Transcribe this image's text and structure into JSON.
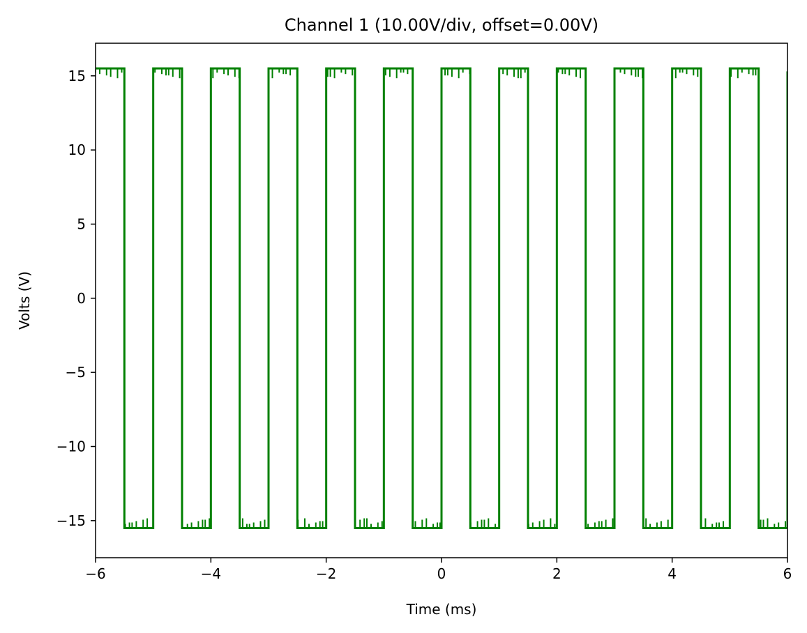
{
  "chart_data": {
    "type": "line",
    "title": "Channel 1 (10.00V/div, offset=0.00V)",
    "xlabel": "Time (ms)",
    "ylabel": "Volts (V)",
    "xlim": [
      -6,
      6
    ],
    "ylim": [
      -17.5,
      17.2
    ],
    "xticks": [
      -6,
      -4,
      -2,
      0,
      2,
      4,
      6
    ],
    "xtick_labels": [
      "−6",
      "−4",
      "−2",
      "0",
      "2",
      "4",
      "6"
    ],
    "yticks": [
      -15,
      -10,
      -5,
      0,
      5,
      10,
      15
    ],
    "ytick_labels": [
      "−15",
      "−10",
      "−5",
      "0",
      "5",
      "10",
      "15"
    ],
    "grid": false,
    "series": [
      {
        "color": "#008000",
        "x": [
          -6.0,
          -5.5,
          -5.5,
          -5.0,
          -5.0,
          -4.5,
          -4.5,
          -4.0,
          -4.0,
          -3.5,
          -3.5,
          -3.0,
          -3.0,
          -2.5,
          -2.5,
          -2.0,
          -2.0,
          -1.5,
          -1.5,
          -1.0,
          -1.0,
          -0.5,
          -0.5,
          0.0,
          0.0,
          0.5,
          0.5,
          1.0,
          1.0,
          1.5,
          1.5,
          2.0,
          2.0,
          2.5,
          2.5,
          3.0,
          3.0,
          3.5,
          3.5,
          4.0,
          4.0,
          4.5,
          4.5,
          5.0,
          5.0,
          5.5,
          5.5,
          6.0,
          6.0
        ],
        "y": [
          15.5,
          15.5,
          -15.5,
          -15.5,
          15.5,
          15.5,
          -15.5,
          -15.5,
          15.5,
          15.5,
          -15.5,
          -15.5,
          15.5,
          15.5,
          -15.5,
          -15.5,
          15.5,
          15.5,
          -15.5,
          -15.5,
          15.5,
          15.5,
          -15.5,
          -15.5,
          15.5,
          15.5,
          -15.5,
          -15.5,
          15.5,
          15.5,
          -15.5,
          -15.5,
          15.5,
          15.5,
          -15.5,
          -15.5,
          15.5,
          15.5,
          -15.5,
          -15.5,
          15.5,
          15.5,
          -15.5,
          -15.5,
          15.5,
          15.5,
          -15.5,
          -15.5,
          15.3
        ]
      }
    ]
  }
}
